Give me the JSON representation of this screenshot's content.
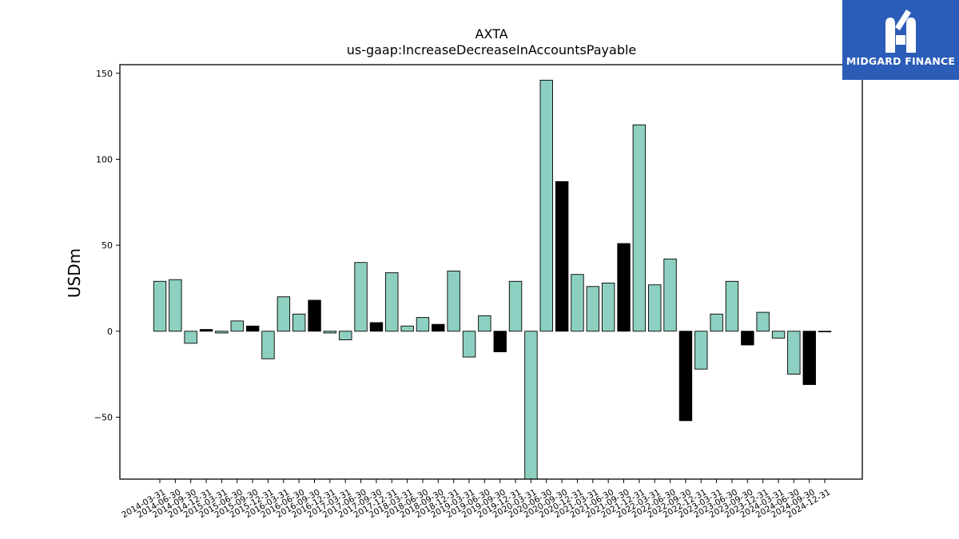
{
  "brand": {
    "name": "MIDGARD FINANCE",
    "logo_icon": "midgard-m-icon",
    "background": "#2b5cb8"
  },
  "colors": {
    "bar_fill": "#8dcfc0",
    "bar_highlight": "#000000",
    "bar_edge": "#000000"
  },
  "chart_data": {
    "type": "bar",
    "title": "AXTA",
    "subtitle": "us-gaap:IncreaseDecreaseInAccountsPayable",
    "xlabel": "",
    "ylabel": "USDm",
    "ylim": [
      -86,
      155
    ],
    "yticks": [
      -50,
      0,
      50,
      100,
      150
    ],
    "ytick_labels": [
      "−50",
      "0",
      "50",
      "100",
      "150"
    ],
    "grid": false,
    "categories": [
      "2014-03-31",
      "2014-06-30",
      "2014-09-30",
      "2014-12-31",
      "2015-03-31",
      "2015-06-30",
      "2015-09-30",
      "2015-12-31",
      "2016-03-31",
      "2016-06-30",
      "2016-09-30",
      "2016-12-31",
      "2017-03-31",
      "2017-06-30",
      "2017-09-30",
      "2017-12-31",
      "2018-03-31",
      "2018-06-30",
      "2018-09-30",
      "2018-12-31",
      "2019-03-31",
      "2019-06-30",
      "2019-09-30",
      "2019-12-31",
      "2020-03-31",
      "2020-06-30",
      "2020-09-30",
      "2020-12-31",
      "2021-03-31",
      "2021-06-30",
      "2021-09-30",
      "2021-12-31",
      "2022-03-31",
      "2022-06-30",
      "2022-09-30",
      "2022-12-31",
      "2023-03-31",
      "2023-06-30",
      "2023-09-30",
      "2023-12-31",
      "2024-03-31",
      "2024-06-30",
      "2024-09-30",
      "2024-12-31"
    ],
    "values": [
      29,
      30,
      -7,
      1,
      -1,
      6,
      3,
      -16,
      20,
      10,
      18,
      -1,
      -5,
      40,
      5,
      34,
      3,
      8,
      4,
      35,
      -15,
      9,
      -12,
      29,
      -90,
      146,
      87,
      33,
      26,
      28,
      51,
      120,
      27,
      42,
      -52,
      -22,
      10,
      29,
      -8,
      11,
      -4,
      -25,
      -31,
      0
    ],
    "highlight": [
      false,
      false,
      false,
      true,
      false,
      false,
      true,
      false,
      false,
      false,
      true,
      false,
      false,
      false,
      true,
      false,
      false,
      false,
      true,
      false,
      false,
      false,
      true,
      false,
      false,
      false,
      true,
      false,
      false,
      false,
      true,
      false,
      false,
      false,
      true,
      false,
      false,
      false,
      true,
      false,
      false,
      false,
      true,
      false
    ]
  }
}
